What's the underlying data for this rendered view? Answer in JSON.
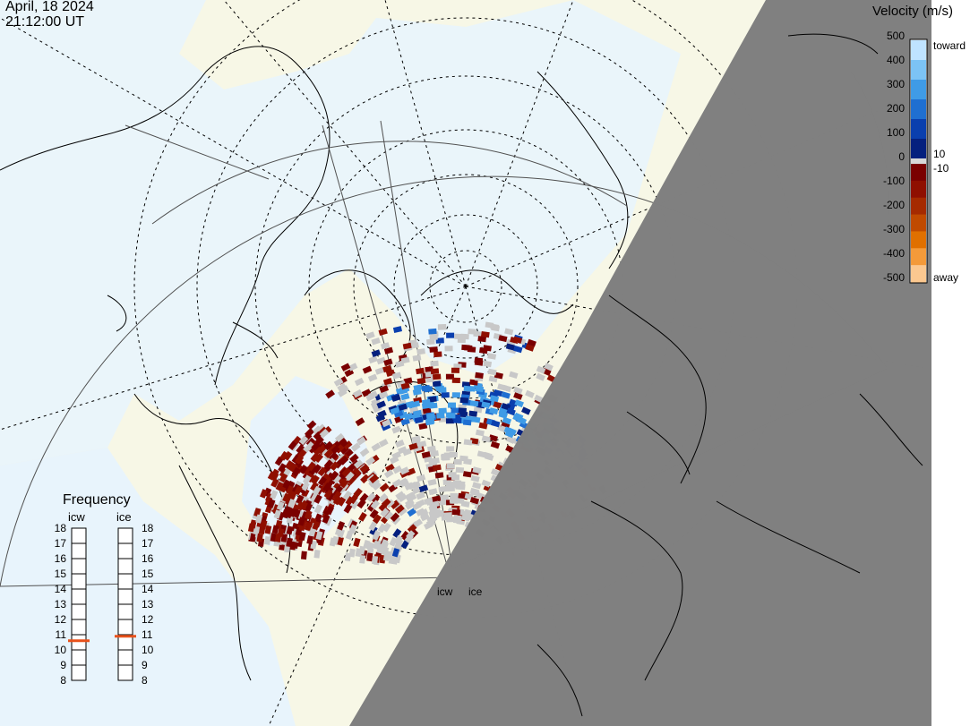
{
  "header": {
    "date": "April, 18 2024",
    "time": "21:12:00 UT"
  },
  "legend": {
    "title": "Velocity (m/s)",
    "ticks": [
      "500",
      "400",
      "300",
      "200",
      "100",
      "10",
      "0",
      "-10",
      "-100",
      "-200",
      "-300",
      "-400",
      "-500"
    ],
    "toward_label": "toward",
    "away_label": "away",
    "colors_toward": [
      "#bfe3ff",
      "#7cc3f5",
      "#3f9be6",
      "#1f6fd1",
      "#0a3fae",
      "#05207e"
    ],
    "colors_away": [
      "#7a0000",
      "#8f0f00",
      "#a52a00",
      "#c04a00",
      "#e07000",
      "#f39a3a",
      "#fbc890"
    ]
  },
  "frequency_panel": {
    "title": "Frequency",
    "radars": [
      {
        "name": "icw",
        "selected": 10.6
      },
      {
        "name": "ice",
        "selected": 10.9
      }
    ],
    "levels": [
      "18",
      "17",
      "16",
      "15",
      "14",
      "13",
      "12",
      "11",
      "10",
      "9",
      "8"
    ],
    "indicator_color": "#e8521c"
  },
  "map": {
    "radars": [
      "icw",
      "ice"
    ],
    "night_color": "#808080",
    "land_color": "#f7f7e6",
    "ocean_color": "#e8f4fc",
    "no_data_color": "#c8c8c8"
  }
}
